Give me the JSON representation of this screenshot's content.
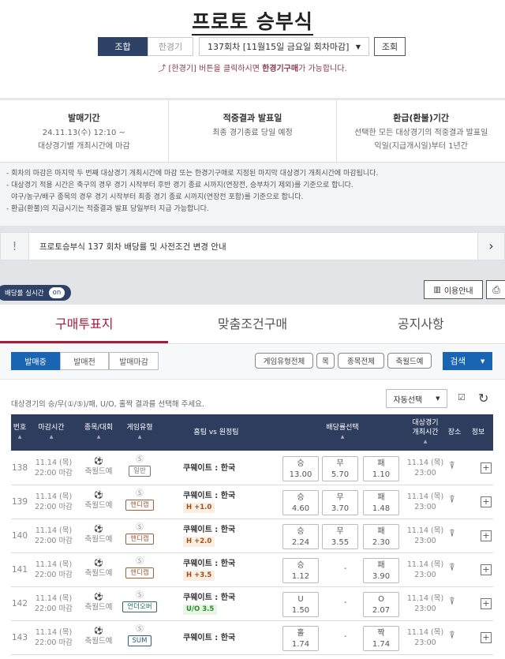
{
  "header": {
    "title": "프로토 승부식",
    "mode_combo": "조합",
    "mode_single": "한경기",
    "round": "137회차 [11월15일 금요일 회차마감]",
    "lookup": "조회",
    "hint_pre": "[한경기] 버튼을 클릭하시면 ",
    "hint_bold": "한경기구매",
    "hint_post": "가 가능합니다."
  },
  "info": [
    {
      "title": "발매기간",
      "lines": [
        "24.11.13(수) 12:10 ~",
        "대상경기별 개최시간에 마감"
      ]
    },
    {
      "title": "적중결과 발표일",
      "lines": [
        "최종 경기종료 당일 예정",
        ""
      ]
    },
    {
      "title": "환급(환불)기간",
      "lines": [
        "선택한 모든 대상경기의 적중결과 발표일",
        "익일(지급개시일)부터 1년간"
      ]
    }
  ],
  "notes": [
    "- 회차의 마감은 마지막 두 번째 대상경기 개최시간에 마감 또는 한경기구매로 지정된 마지막 대상경기 개최시간에 마감됩니다.",
    "- 대상경기 적용 시간은 축구의 경우 경기 시작부터 후반 경기 종료 시까지(연장전, 승부차기 제외)를 기준으로 합니다.",
    "  야구/농구/배구 종목의 경우 경기 시작부터 최종 경기 종료 시까지(연장전 포함)를 기준으로 합니다.",
    "- 환급(환불)의 지급시기는 적중결과 발표 당일부터 지급 가능합니다."
  ],
  "notice": {
    "icon": "!",
    "text": "프로토승부식 137 회차 배당률 및 사전조건 변경 안내"
  },
  "toggle": {
    "label": "배당률 실시간",
    "state": "on"
  },
  "guide": "이용안내",
  "tabs": [
    "구매투표지",
    "맞춤조건구매",
    "공지사항"
  ],
  "status_tabs": [
    "발매중",
    "발매전",
    "발매마감"
  ],
  "filters": [
    "게임유형전체",
    "목",
    "종목전체",
    "축월드예"
  ],
  "search": "검색",
  "instruction": "대상경기의 승/무(①/⑤)/패, U/O, 홀짝 결과를 선택해 주세요.",
  "auto_select": "자동선택",
  "columns": {
    "num": "번호",
    "deadline": "마감시간",
    "sport": "종목/대회",
    "type": "게임유형",
    "teams": "홈팀 vs 원정팀",
    "odds": "배당률선택",
    "time1": "대상경기",
    "time2": "개최시간",
    "venue": "장소",
    "info": "정보"
  },
  "rows": [
    {
      "num": "138",
      "date": "11.14 (목)",
      "close": "22:00 마감",
      "league": "축월드예",
      "type": "일반",
      "kind": "g",
      "teams": "쿠웨이트 : 한국",
      "cond": "",
      "odds": [
        [
          "승",
          "13.00"
        ],
        [
          "무",
          "5.70"
        ],
        [
          "패",
          "1.10"
        ]
      ],
      "mdate": "11.14 (목)",
      "mtime": "23:00"
    },
    {
      "num": "139",
      "date": "11.14 (목)",
      "close": "22:00 마감",
      "league": "축월드예",
      "type": "핸디캡",
      "kind": "h",
      "teams": "쿠웨이트 : 한국",
      "cond": "H +1.0",
      "odds": [
        [
          "승",
          "4.60"
        ],
        [
          "무",
          "3.70"
        ],
        [
          "패",
          "1.48"
        ]
      ],
      "mdate": "11.14 (목)",
      "mtime": "23:00"
    },
    {
      "num": "140",
      "date": "11.14 (목)",
      "close": "22:00 마감",
      "league": "축월드예",
      "type": "핸디캡",
      "kind": "h",
      "teams": "쿠웨이트 : 한국",
      "cond": "H +2.0",
      "odds": [
        [
          "승",
          "2.24"
        ],
        [
          "무",
          "3.55"
        ],
        [
          "패",
          "2.30"
        ]
      ],
      "mdate": "11.14 (목)",
      "mtime": "23:00"
    },
    {
      "num": "141",
      "date": "11.14 (목)",
      "close": "22:00 마감",
      "league": "축월드예",
      "type": "핸디캡",
      "kind": "h",
      "teams": "쿠웨이트 : 한국",
      "cond": "H +3.5",
      "odds": [
        [
          "승",
          "1.12"
        ],
        null,
        [
          "패",
          "3.90"
        ]
      ],
      "mdate": "11.14 (목)",
      "mtime": "23:00"
    },
    {
      "num": "142",
      "date": "11.14 (목)",
      "close": "22:00 마감",
      "league": "축월드예",
      "type": "언더오버",
      "kind": "u",
      "teams": "쿠웨이트 : 한국",
      "cond": "U/O 3.5",
      "odds": [
        [
          "U",
          "1.50"
        ],
        null,
        [
          "O",
          "2.07"
        ]
      ],
      "mdate": "11.14 (목)",
      "mtime": "23:00"
    },
    {
      "num": "143",
      "date": "11.14 (목)",
      "close": "22:00 마감",
      "league": "축월드예",
      "type": "SUM",
      "kind": "s",
      "teams": "쿠웨이트 : 한국",
      "cond": "",
      "odds": [
        [
          "홀",
          "1.74"
        ],
        null,
        [
          "짝",
          "1.74"
        ]
      ],
      "mdate": "11.14 (목)",
      "mtime": "23:00"
    }
  ]
}
